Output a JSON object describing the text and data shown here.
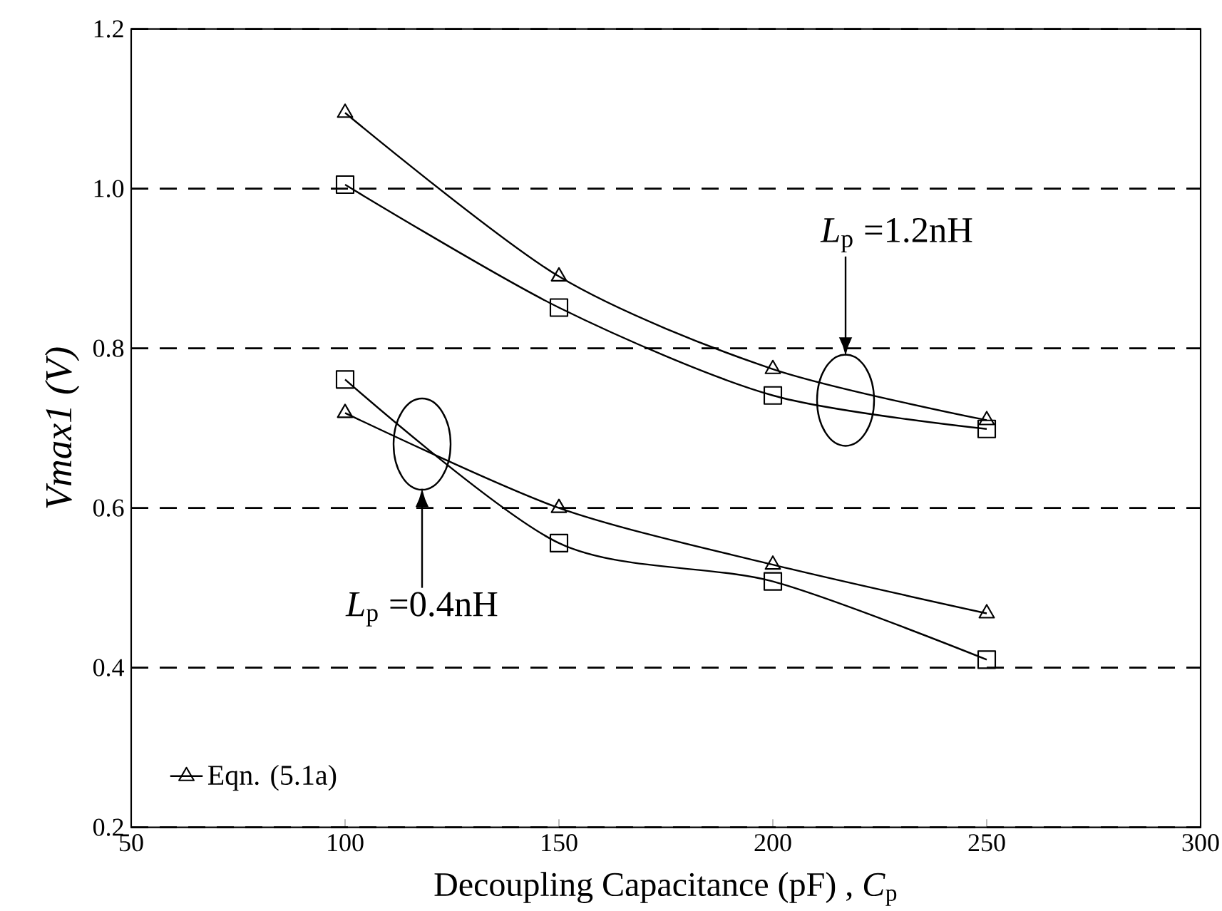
{
  "chart_data": {
    "type": "line",
    "xlabel": "Decoupling Capacitance (pF) , *C*$_{p}$",
    "ylabel": "Vmax1 (V)",
    "x": [
      100,
      150,
      200,
      250
    ],
    "series": [
      {
        "color": "#000000",
        "marker": "square",
        "values": [
          1.005,
          0.851,
          0.741,
          0.699
        ]
      },
      {
        "name": "Eqn. (5.1a)",
        "color": "#000000",
        "marker": "triangle",
        "values": [
          1.095,
          0.89,
          0.774,
          0.71
        ]
      },
      {
        "color": "#000000",
        "marker": "square",
        "values": [
          0.761,
          0.556,
          0.508,
          0.41
        ]
      },
      {
        "color": "#000000",
        "marker": "triangle",
        "values": [
          0.719,
          0.6,
          0.529,
          0.468
        ]
      }
    ],
    "xlim": [
      50,
      300
    ],
    "xticks": [
      50,
      100,
      150,
      200,
      250,
      300
    ],
    "ylim": [
      0.2,
      1.2
    ],
    "yticks": [
      0.2,
      0.4,
      0.6,
      0.8,
      {
        "value": 1.0,
        "label": "1.0"
      },
      1.2
    ],
    "grid": "y",
    "legend": "bottom left",
    "line_style": "solid",
    "annotations": [
      "*L*$_{p}$ =1.2nH",
      "*L*$_{p}$ =0.4nH"
    ]
  }
}
